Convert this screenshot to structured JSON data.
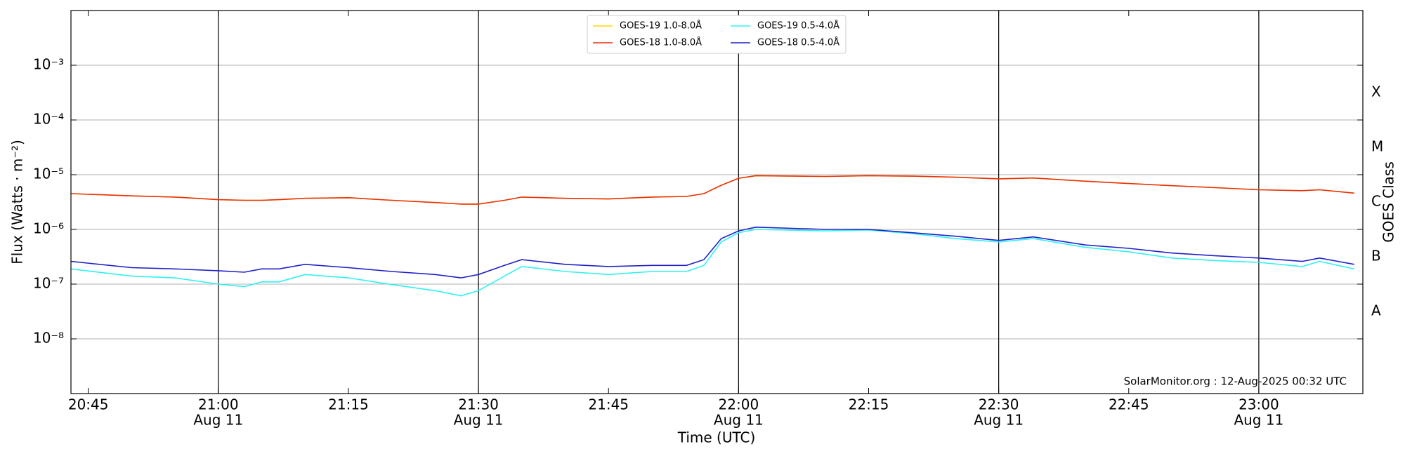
{
  "chart_data": {
    "type": "line",
    "xlabel": "Time (UTC)",
    "ylabel": "Flux (Watts · m⁻²)",
    "y2label": "GOES Class",
    "annotation": "SolarMonitor.org : 12-Aug-2025 00:32 UTC",
    "log_y": true,
    "grid": true,
    "legend": "upper center",
    "xlim": [
      "20:43",
      "23:12"
    ],
    "xticks": [
      "20:45",
      {
        "value": "21:00",
        "label": "21:00",
        "date": "Aug 11"
      },
      "21:15",
      {
        "value": "21:30",
        "label": "21:30",
        "date": "Aug 11"
      },
      "21:45",
      {
        "value": "22:00",
        "label": "22:00",
        "date": "Aug 11"
      },
      "22:15",
      {
        "value": "22:30",
        "label": "22:30",
        "date": "Aug 11"
      },
      "22:45",
      {
        "value": "23:00",
        "label": "23:00",
        "date": "Aug 11"
      }
    ],
    "ylim": [
      1e-09,
      0.01
    ],
    "yticks": [
      {
        "value": 1e-08,
        "label": "10⁻⁸"
      },
      {
        "value": 1e-07,
        "label": "10⁻⁷"
      },
      {
        "value": 1e-06,
        "label": "10⁻⁶"
      },
      {
        "value": 1e-05,
        "label": "10⁻⁵"
      },
      {
        "value": 0.0001,
        "label": "10⁻⁴"
      },
      {
        "value": 0.001,
        "label": "10⁻³"
      }
    ],
    "y2lim": [
      1e-09,
      0.01
    ],
    "y2ticks": [
      {
        "value": 3.16e-08,
        "label": "A"
      },
      {
        "value": 3.16e-07,
        "label": "B"
      },
      {
        "value": 3.16e-06,
        "label": "C"
      },
      {
        "value": 3.16e-05,
        "label": "M"
      },
      {
        "value": 0.000316,
        "label": "X"
      }
    ],
    "x": [
      "20:43",
      "20:50",
      "20:55",
      "21:00",
      "21:03",
      "21:05",
      "21:07",
      "21:10",
      "21:15",
      "21:20",
      "21:25",
      "21:28",
      "21:30",
      "21:33",
      "21:35",
      "21:40",
      "21:45",
      "21:50",
      "21:54",
      "21:56",
      "21:58",
      "22:00",
      "22:02",
      "22:10",
      "22:15",
      "22:20",
      "22:25",
      "22:30",
      "22:34",
      "22:40",
      "22:45",
      "22:50",
      "22:55",
      "23:00",
      "23:05",
      "23:07",
      "23:11"
    ],
    "series": [
      {
        "name": "GOES-19 1.0-8.0Å",
        "color": "#ffd700",
        "values": [
          4.5e-06,
          4.1e-06,
          3.9e-06,
          3.5e-06,
          3.4e-06,
          3.4e-06,
          3.5e-06,
          3.7e-06,
          3.8e-06,
          3.4e-06,
          3.1e-06,
          2.9e-06,
          2.9e-06,
          3.4e-06,
          3.9e-06,
          3.7e-06,
          3.6e-06,
          3.9e-06,
          4e-06,
          4.5e-06,
          6.4e-06,
          8.6e-06,
          9.6e-06,
          9.3e-06,
          9.6e-06,
          9.4e-06,
          9e-06,
          8.4e-06,
          8.7e-06,
          7.6e-06,
          6.9e-06,
          6.3e-06,
          5.8e-06,
          5.3e-06,
          5.1e-06,
          5.3e-06,
          4.6e-06
        ]
      },
      {
        "name": "GOES-18 1.0-8.0Å",
        "color": "#e8300c",
        "values": [
          4.5e-06,
          4.1e-06,
          3.9e-06,
          3.5e-06,
          3.4e-06,
          3.4e-06,
          3.5e-06,
          3.7e-06,
          3.8e-06,
          3.4e-06,
          3.1e-06,
          2.9e-06,
          2.9e-06,
          3.4e-06,
          3.9e-06,
          3.7e-06,
          3.6e-06,
          3.9e-06,
          4e-06,
          4.5e-06,
          6.4e-06,
          8.6e-06,
          9.6e-06,
          9.3e-06,
          9.6e-06,
          9.4e-06,
          9e-06,
          8.4e-06,
          8.7e-06,
          7.6e-06,
          6.9e-06,
          6.3e-06,
          5.8e-06,
          5.3e-06,
          5.1e-06,
          5.3e-06,
          4.6e-06
        ]
      },
      {
        "name": "GOES-19 0.5-4.0Å",
        "color": "#2ef2f2",
        "values": [
          1.9e-07,
          1.4e-07,
          1.3e-07,
          1e-07,
          9e-08,
          1.1e-07,
          1.1e-07,
          1.5e-07,
          1.3e-07,
          9.8e-08,
          7.6e-08,
          6.1e-08,
          7.6e-08,
          1.4e-07,
          2.1e-07,
          1.7e-07,
          1.5e-07,
          1.7e-07,
          1.7e-07,
          2.2e-07,
          5.9e-07,
          8.7e-07,
          1e-06,
          9.4e-07,
          9.7e-07,
          8.4e-07,
          6.8e-07,
          5.9e-07,
          6.8e-07,
          4.7e-07,
          3.9e-07,
          3e-07,
          2.7e-07,
          2.5e-07,
          2.1e-07,
          2.6e-07,
          1.9e-07
        ]
      },
      {
        "name": "GOES-18 0.5-4.0Å",
        "color": "#2020c8",
        "values": [
          2.6e-07,
          2e-07,
          1.9e-07,
          1.76e-07,
          1.65e-07,
          1.9e-07,
          1.9e-07,
          2.3e-07,
          2e-07,
          1.7e-07,
          1.5e-07,
          1.3e-07,
          1.5e-07,
          2.2e-07,
          2.8e-07,
          2.3e-07,
          2.1e-07,
          2.2e-07,
          2.2e-07,
          2.8e-07,
          6.8e-07,
          9.4e-07,
          1.1e-06,
          1e-06,
          1e-06,
          8.7e-07,
          7.5e-07,
          6.3e-07,
          7.3e-07,
          5.2e-07,
          4.5e-07,
          3.7e-07,
          3.3e-07,
          3e-07,
          2.6e-07,
          3e-07,
          2.3e-07
        ]
      }
    ]
  }
}
